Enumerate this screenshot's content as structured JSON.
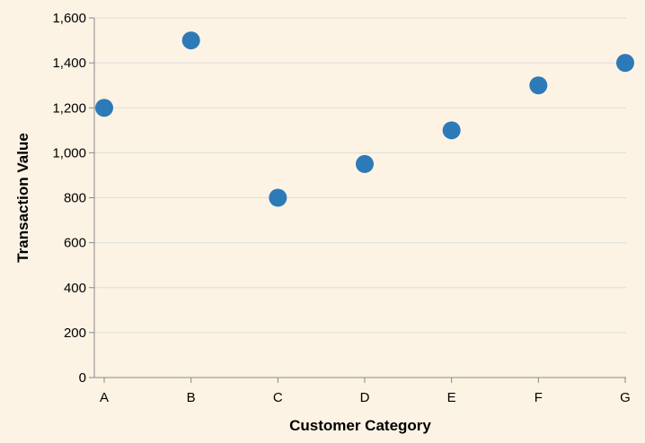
{
  "chart_data": {
    "type": "scatter",
    "title": "",
    "xlabel": "Customer Category",
    "ylabel": "Transaction Value",
    "categories": [
      "A",
      "B",
      "C",
      "D",
      "E",
      "F",
      "G"
    ],
    "values": [
      1200,
      1500,
      800,
      950,
      1100,
      1300,
      1400
    ],
    "ylim": [
      0,
      1600
    ],
    "yticks": [
      0,
      200,
      400,
      600,
      800,
      1000,
      1200,
      1400,
      1600
    ],
    "ytick_labels": [
      "0",
      "200",
      "400",
      "600",
      "800",
      "1,000",
      "1,200",
      "1,400",
      "1,600"
    ],
    "grid": true,
    "legend": "none",
    "point_color": "#2d7ab8"
  }
}
